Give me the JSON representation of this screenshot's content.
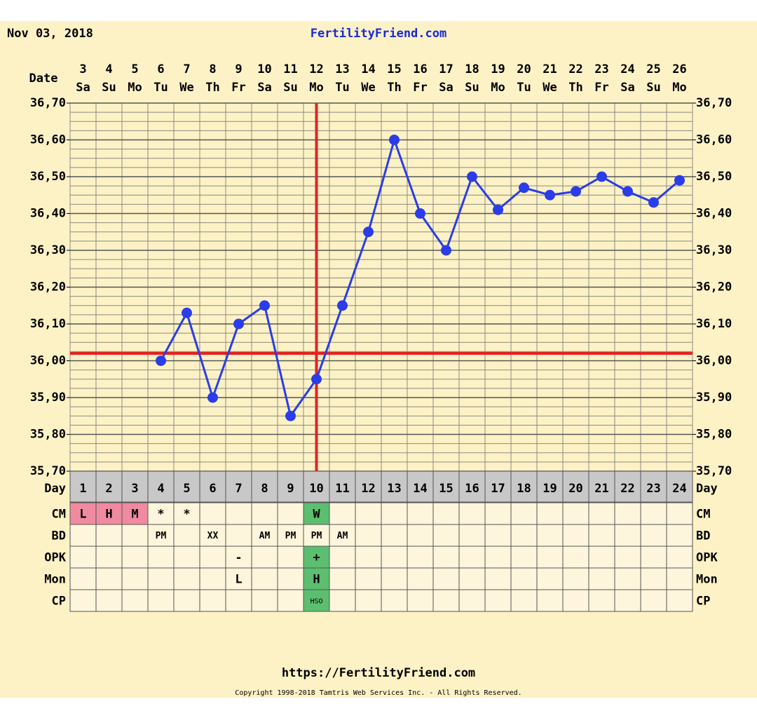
{
  "header": {
    "date": "Nov 03, 2018",
    "site": "FertilityFriend.com"
  },
  "chart_data": {
    "type": "line",
    "date_label": "Date",
    "dates": [
      3,
      4,
      5,
      6,
      7,
      8,
      9,
      10,
      11,
      12,
      13,
      14,
      15,
      16,
      17,
      18,
      19,
      20,
      21,
      22,
      23,
      24,
      25,
      26
    ],
    "weekdays": [
      "Sa",
      "Su",
      "Mo",
      "Tu",
      "We",
      "Th",
      "Fr",
      "Sa",
      "Su",
      "Mo",
      "Tu",
      "We",
      "Th",
      "Fr",
      "Sa",
      "Su",
      "Mo",
      "Tu",
      "We",
      "Th",
      "Fr",
      "Sa",
      "Su",
      "Mo"
    ],
    "day_label": "Day",
    "categories": [
      1,
      2,
      3,
      4,
      5,
      6,
      7,
      8,
      9,
      10,
      11,
      12,
      13,
      14,
      15,
      16,
      17,
      18,
      19,
      20,
      21,
      22,
      23,
      24
    ],
    "series": [
      {
        "color": "#2a3de8",
        "values": [
          null,
          null,
          null,
          36.0,
          36.13,
          35.9,
          36.1,
          36.15,
          35.85,
          35.95,
          36.15,
          36.35,
          36.6,
          36.4,
          36.3,
          36.5,
          36.41,
          36.47,
          36.45,
          36.46,
          36.5,
          36.46,
          36.43,
          36.49
        ]
      }
    ],
    "ylim": [
      35.7,
      36.7
    ],
    "yticks": [
      {
        "value": 35.7,
        "label": "35,70"
      },
      {
        "value": 35.8,
        "label": "35,80"
      },
      {
        "value": 35.9,
        "label": "35,90"
      },
      {
        "value": 36.0,
        "label": "36,00"
      },
      {
        "value": 36.1,
        "label": "36,10"
      },
      {
        "value": 36.2,
        "label": "36,20"
      },
      {
        "value": 36.3,
        "label": "36,30"
      },
      {
        "value": 36.4,
        "label": "36,40"
      },
      {
        "value": 36.5,
        "label": "36,50"
      },
      {
        "value": 36.6,
        "label": "36,60"
      },
      {
        "value": 36.7,
        "label": "36,70"
      }
    ],
    "grid": true,
    "coverline": 36.02,
    "coverline_color": "#e82020",
    "ovulation_day": 10,
    "rows": [
      {
        "label": "CM",
        "cells": [
          "L",
          "H",
          "M",
          "*",
          "*",
          null,
          null,
          null,
          null,
          "W",
          null,
          null,
          null,
          null,
          null,
          null,
          null,
          null,
          null,
          null,
          null,
          null,
          null,
          null
        ],
        "cell_colors": [
          "#f08aa0",
          "#f08aa0",
          "#f08aa0",
          null,
          null,
          null,
          null,
          null,
          null,
          "#5cbf6f",
          null,
          null,
          null,
          null,
          null,
          null,
          null,
          null,
          null,
          null,
          null,
          null,
          null,
          null
        ]
      },
      {
        "label": "BD",
        "cells": [
          null,
          null,
          null,
          "PM",
          null,
          "XX",
          null,
          "AM",
          "PM",
          "PM",
          "AM",
          null,
          null,
          null,
          null,
          null,
          null,
          null,
          null,
          null,
          null,
          null,
          null,
          null
        ]
      },
      {
        "label": "OPK",
        "cells": [
          null,
          null,
          null,
          null,
          null,
          null,
          "-",
          null,
          null,
          "+",
          null,
          null,
          null,
          null,
          null,
          null,
          null,
          null,
          null,
          null,
          null,
          null,
          null,
          null
        ],
        "cell_colors": [
          null,
          null,
          null,
          null,
          null,
          null,
          null,
          null,
          null,
          "#5cbf6f",
          null,
          null,
          null,
          null,
          null,
          null,
          null,
          null,
          null,
          null,
          null,
          null,
          null,
          null
        ]
      },
      {
        "label": "Mon",
        "cells": [
          null,
          null,
          null,
          null,
          null,
          null,
          "L",
          null,
          null,
          "H",
          null,
          null,
          null,
          null,
          null,
          null,
          null,
          null,
          null,
          null,
          null,
          null,
          null,
          null
        ],
        "cell_colors": [
          null,
          null,
          null,
          null,
          null,
          null,
          null,
          null,
          null,
          "#5cbf6f",
          null,
          null,
          null,
          null,
          null,
          null,
          null,
          null,
          null,
          null,
          null,
          null,
          null,
          null
        ]
      },
      {
        "label": "CP",
        "cells": [
          null,
          null,
          null,
          null,
          null,
          null,
          null,
          null,
          null,
          "HSO",
          null,
          null,
          null,
          null,
          null,
          null,
          null,
          null,
          null,
          null,
          null,
          null,
          null,
          null
        ],
        "cell_colors": [
          null,
          null,
          null,
          null,
          null,
          null,
          null,
          null,
          null,
          "#5cbf6f",
          null,
          null,
          null,
          null,
          null,
          null,
          null,
          null,
          null,
          null,
          null,
          null,
          null,
          null
        ]
      }
    ]
  },
  "footer": {
    "url": "https://FertilityFriend.com",
    "copyright": "Copyright 1998-2018 Tamtris Web Services Inc. - All Rights Reserved."
  }
}
